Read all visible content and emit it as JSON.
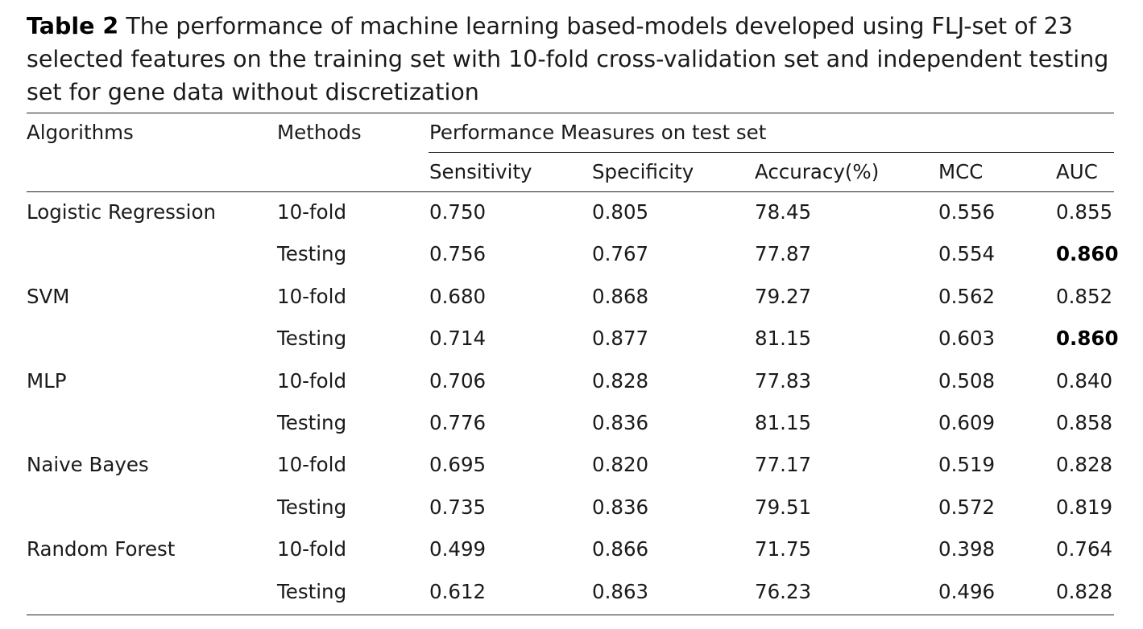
{
  "caption": {
    "label": "Table 2",
    "text": "The performance of machine learning based-models developed using FLJ-set of 23 selected features on the training set with 10-fold cross-validation set and independent testing set for gene data without discretization"
  },
  "table": {
    "header": {
      "algorithms": "Algorithms",
      "methods": "Methods",
      "group": "Performance Measures on test set"
    },
    "columns": [
      "Sensitivity",
      "Specificity",
      "Accuracy(%)",
      "MCC",
      "AUC"
    ],
    "rows": [
      {
        "algorithm": "Logistic Regression",
        "method": "10-fold",
        "values": [
          "0.750",
          "0.805",
          "78.45",
          "0.556",
          "0.855"
        ],
        "bold_auc": false
      },
      {
        "algorithm": "",
        "method": "Testing",
        "values": [
          "0.756",
          "0.767",
          "77.87",
          "0.554",
          "0.860"
        ],
        "bold_auc": true
      },
      {
        "algorithm": "SVM",
        "method": "10-fold",
        "values": [
          "0.680",
          "0.868",
          "79.27",
          "0.562",
          "0.852"
        ],
        "bold_auc": false
      },
      {
        "algorithm": "",
        "method": "Testing",
        "values": [
          "0.714",
          "0.877",
          "81.15",
          "0.603",
          "0.860"
        ],
        "bold_auc": true
      },
      {
        "algorithm": "MLP",
        "method": "10-fold",
        "values": [
          "0.706",
          "0.828",
          "77.83",
          "0.508",
          "0.840"
        ],
        "bold_auc": false
      },
      {
        "algorithm": "",
        "method": "Testing",
        "values": [
          "0.776",
          "0.836",
          "81.15",
          "0.609",
          "0.858"
        ],
        "bold_auc": false
      },
      {
        "algorithm": "Naive Bayes",
        "method": "10-fold",
        "values": [
          "0.695",
          "0.820",
          "77.17",
          "0.519",
          "0.828"
        ],
        "bold_auc": false
      },
      {
        "algorithm": "",
        "method": "Testing",
        "values": [
          "0.735",
          "0.836",
          "79.51",
          "0.572",
          "0.819"
        ],
        "bold_auc": false
      },
      {
        "algorithm": "Random Forest",
        "method": "10-fold",
        "values": [
          "0.499",
          "0.866",
          "71.75",
          "0.398",
          "0.764"
        ],
        "bold_auc": false
      },
      {
        "algorithm": "",
        "method": "Testing",
        "values": [
          "0.612",
          "0.863",
          "76.23",
          "0.496",
          "0.828"
        ],
        "bold_auc": false
      }
    ]
  }
}
